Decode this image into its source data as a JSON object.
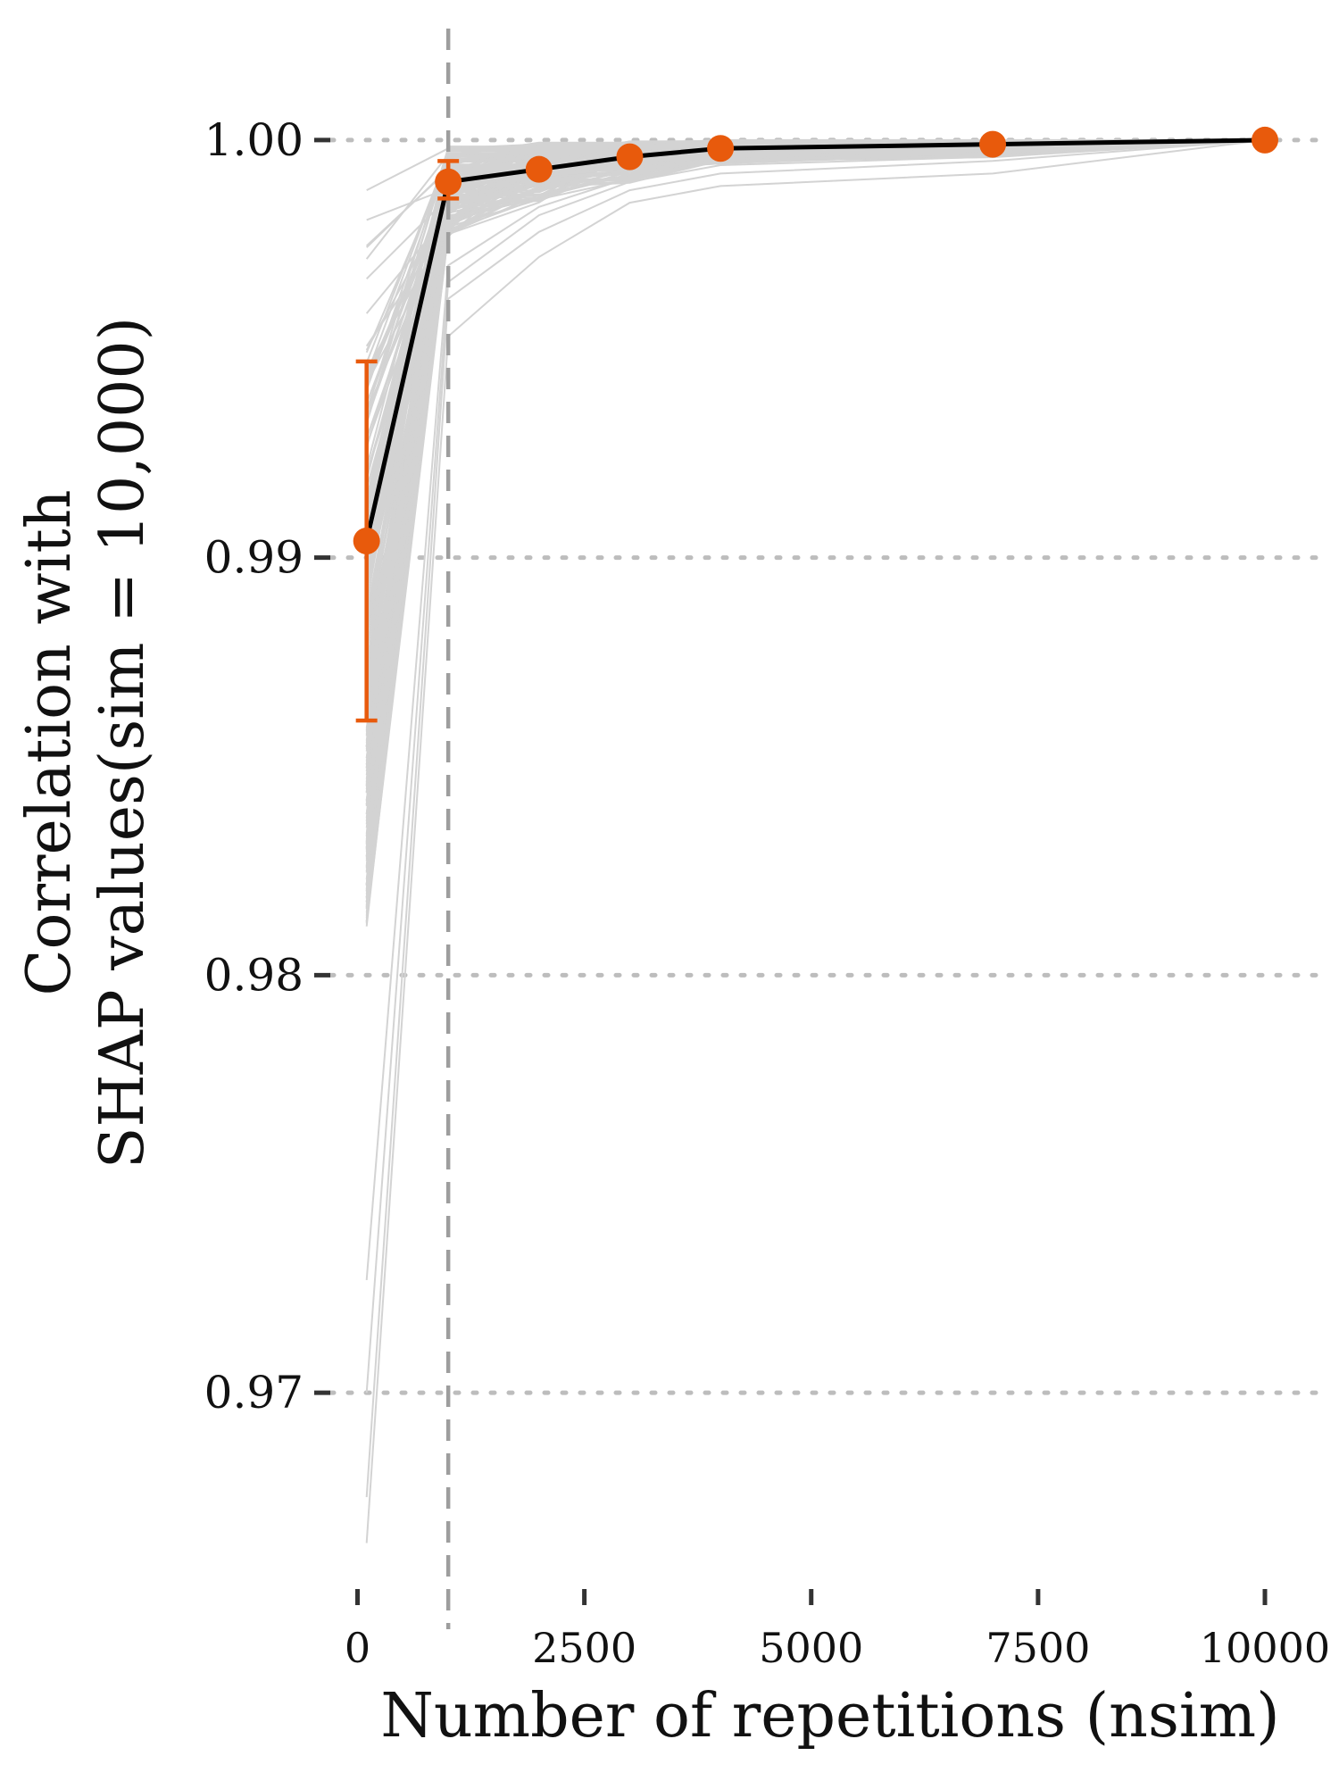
{
  "chart_data": {
    "type": "line",
    "title": "",
    "xlabel": "Number of repetitions (nsim)",
    "ylabel_lines": [
      "Correlation with",
      "SHAP values(sim = 10,000)"
    ],
    "xlim": [
      -300,
      10600
    ],
    "ylim": [
      0.9653,
      1.0025
    ],
    "x_ticks": [
      0,
      2500,
      5000,
      7500,
      10000
    ],
    "x_tick_labels": [
      "0",
      "2500",
      "5000",
      "7500",
      "10000"
    ],
    "y_ticks": [
      0.97,
      0.98,
      0.99,
      1.0
    ],
    "y_tick_labels": [
      "0.97",
      "0.98",
      "0.99",
      "1.00"
    ],
    "grid": "horizontal dotted",
    "reference_line": {
      "x": 1000,
      "style": "dashed"
    },
    "colors": {
      "mean_line": "#000000",
      "points": "#E85A0C",
      "background_lines": "#d3d3d3",
      "grid": "#bdbdbd",
      "reference": "#9e9e9e"
    },
    "mean_series": {
      "x": [
        100,
        1000,
        2000,
        3000,
        4000,
        7000,
        10000
      ],
      "y": [
        0.9904,
        0.999,
        0.9993,
        0.9996,
        0.9998,
        0.9999,
        1.0
      ],
      "err_low": [
        0.9861,
        0.9986,
        null,
        null,
        null,
        null,
        null
      ],
      "err_high": [
        0.9947,
        0.9995,
        null,
        null,
        null,
        null,
        null
      ]
    },
    "individual_runs": {
      "x": [
        100,
        1000,
        2000,
        3000,
        4000,
        7000,
        10000
      ],
      "first_point_range": [
        0.9664,
        0.9988
      ],
      "second_point_range": [
        0.9953,
        0.9998
      ],
      "extreme_runs": [
        [
          0.9664,
          0.9953,
          0.9972,
          0.9985,
          0.9989,
          0.9992,
          1.0
        ],
        [
          0.9675,
          0.9962,
          0.9978,
          0.9988,
          0.9992,
          0.9995,
          1.0
        ],
        [
          0.97,
          0.9966,
          0.9982,
          0.999,
          0.9994,
          0.9996,
          1.0
        ],
        [
          0.9727,
          0.997,
          0.9984,
          0.9991,
          0.9995,
          0.9997,
          1.0
        ],
        [
          0.9988,
          0.9998,
          0.9999,
          0.9999,
          1.0,
          1.0,
          1.0
        ]
      ]
    }
  }
}
